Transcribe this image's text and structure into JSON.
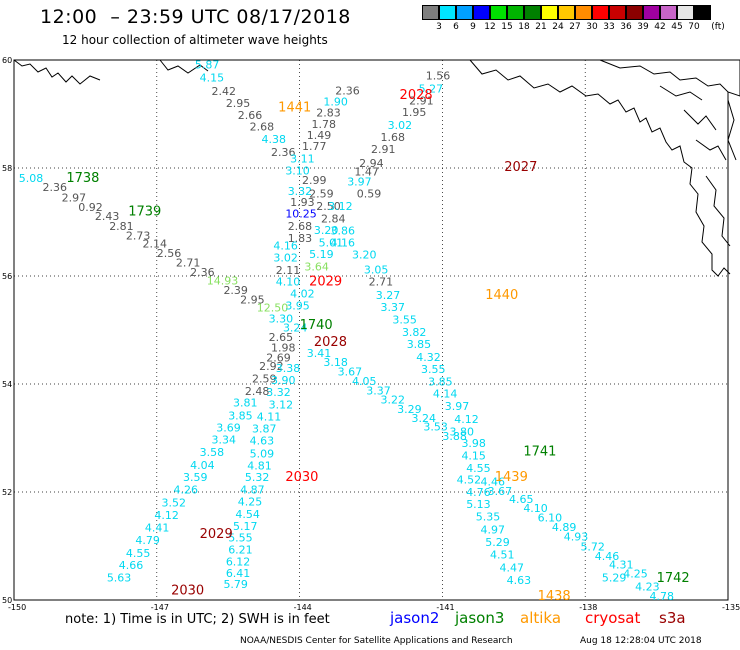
{
  "header": {
    "title": "12:00  – 23:59 UTC 08/17/2018",
    "subtitle": "12 hour collection of altimeter wave heights"
  },
  "legend": {
    "units": "(ft)",
    "bins": [
      {
        "label": "3",
        "color": "#7f7f7f"
      },
      {
        "label": "6",
        "color": "#00e5ff"
      },
      {
        "label": "9",
        "color": "#00a0ff"
      },
      {
        "label": "12",
        "color": "#0000ff"
      },
      {
        "label": "15",
        "color": "#00e000"
      },
      {
        "label": "18",
        "color": "#00b400"
      },
      {
        "label": "21",
        "color": "#008000"
      },
      {
        "label": "24",
        "color": "#ffff00"
      },
      {
        "label": "27",
        "color": "#ffc800"
      },
      {
        "label": "30",
        "color": "#ff8c00"
      },
      {
        "label": "33",
        "color": "#ff0000"
      },
      {
        "label": "36",
        "color": "#c80000"
      },
      {
        "label": "39",
        "color": "#8b0000"
      },
      {
        "label": "42",
        "color": "#a000a0"
      },
      {
        "label": "45",
        "color": "#c864c8"
      },
      {
        "label": "70",
        "color": "#e6e6e6"
      },
      {
        "label": "",
        "color": "#000000"
      }
    ]
  },
  "axes": {
    "lon_labels": [
      "-150",
      "-147",
      "-144",
      "-141",
      "-138",
      "-135"
    ],
    "lat_labels": [
      "60",
      "58",
      "56",
      "54",
      "52",
      "50"
    ]
  },
  "colors": {
    "gray": "#555555",
    "cyan": "#00d8f0",
    "blue": "#0000ff",
    "lightgreen": "#88e060",
    "green": "#008000",
    "orange": "#ff9900",
    "red": "#ff0000",
    "darkred": "#990000",
    "coast": "#000000",
    "grid": "#000000"
  },
  "passes": [
    {
      "text": "2028",
      "lon": -141.9,
      "lat": 59.28,
      "color": "red"
    },
    {
      "text": "1441",
      "lon": -144.45,
      "lat": 59.05,
      "color": "orange"
    },
    {
      "text": "2027",
      "lon": -139.7,
      "lat": 57.94,
      "color": "darkred"
    },
    {
      "text": "1738",
      "lon": -148.9,
      "lat": 57.74,
      "color": "green"
    },
    {
      "text": "1739",
      "lon": -147.6,
      "lat": 57.12,
      "color": "green"
    },
    {
      "text": "2029",
      "lon": -143.8,
      "lat": 55.82,
      "color": "red"
    },
    {
      "text": "1440",
      "lon": -140.1,
      "lat": 55.57,
      "color": "orange"
    },
    {
      "text": "1740",
      "lon": -144.0,
      "lat": 55.02,
      "color": "green"
    },
    {
      "text": "2028",
      "lon": -143.7,
      "lat": 54.7,
      "color": "darkred"
    },
    {
      "text": "1741",
      "lon": -139.3,
      "lat": 52.68,
      "color": "green"
    },
    {
      "text": "2030",
      "lon": -144.3,
      "lat": 52.2,
      "color": "red"
    },
    {
      "text": "1439",
      "lon": -139.9,
      "lat": 52.2,
      "color": "orange"
    },
    {
      "text": "2029",
      "lon": -146.1,
      "lat": 51.15,
      "color": "darkred"
    },
    {
      "text": "1742",
      "lon": -136.5,
      "lat": 50.33,
      "color": "green"
    },
    {
      "text": "2030",
      "lon": -146.7,
      "lat": 50.1,
      "color": "darkred"
    },
    {
      "text": "1438",
      "lon": -139.0,
      "lat": 50.0,
      "color": "orange"
    }
  ],
  "observations": [
    {
      "v": "5.87",
      "lon": -146.2,
      "lat": 59.84,
      "c": "cyan"
    },
    {
      "v": "4.15",
      "lon": -146.1,
      "lat": 59.6,
      "c": "cyan"
    },
    {
      "v": "2.36",
      "lon": -143.25,
      "lat": 59.36,
      "c": "gray"
    },
    {
      "v": "2.42",
      "lon": -145.85,
      "lat": 59.35,
      "c": "gray"
    },
    {
      "v": "2.95",
      "lon": -145.55,
      "lat": 59.13,
      "c": "gray"
    },
    {
      "v": "1.90",
      "lon": -143.5,
      "lat": 59.16,
      "c": "cyan"
    },
    {
      "v": "2.83",
      "lon": -143.65,
      "lat": 58.95,
      "c": "gray"
    },
    {
      "v": "2.66",
      "lon": -145.3,
      "lat": 58.91,
      "c": "gray"
    },
    {
      "v": "1.78",
      "lon": -143.75,
      "lat": 58.74,
      "c": "gray"
    },
    {
      "v": "2.68",
      "lon": -145.05,
      "lat": 58.69,
      "c": "gray"
    },
    {
      "v": "1.49",
      "lon": -143.85,
      "lat": 58.54,
      "c": "gray"
    },
    {
      "v": "4.38",
      "lon": -144.8,
      "lat": 58.46,
      "c": "cyan"
    },
    {
      "v": "1.77",
      "lon": -143.95,
      "lat": 58.33,
      "c": "gray"
    },
    {
      "v": "2.36",
      "lon": -144.6,
      "lat": 58.22,
      "c": "gray"
    },
    {
      "v": "3.11",
      "lon": -144.2,
      "lat": 58.1,
      "c": "cyan"
    },
    {
      "v": "3.10",
      "lon": -144.3,
      "lat": 57.88,
      "c": "cyan"
    },
    {
      "v": "2.99",
      "lon": -143.95,
      "lat": 57.7,
      "c": "gray"
    },
    {
      "v": "3.32",
      "lon": -144.25,
      "lat": 57.5,
      "c": "cyan"
    },
    {
      "v": "2.59",
      "lon": -143.8,
      "lat": 57.45,
      "c": "gray"
    },
    {
      "v": "1.93",
      "lon": -144.2,
      "lat": 57.3,
      "c": "gray"
    },
    {
      "v": "2.50",
      "lon": -143.65,
      "lat": 57.22,
      "c": "gray"
    },
    {
      "v": "10.25",
      "lon": -144.3,
      "lat": 57.08,
      "c": "blue"
    },
    {
      "v": "2.84",
      "lon": -143.55,
      "lat": 56.99,
      "c": "gray"
    },
    {
      "v": "2.68",
      "lon": -144.25,
      "lat": 56.85,
      "c": "gray"
    },
    {
      "v": "3.20",
      "lon": -143.7,
      "lat": 56.78,
      "c": "cyan"
    },
    {
      "v": "1.83",
      "lon": -144.25,
      "lat": 56.63,
      "c": "gray"
    },
    {
      "v": "5.01",
      "lon": -143.6,
      "lat": 56.55,
      "c": "cyan"
    },
    {
      "v": "4.16",
      "lon": -144.55,
      "lat": 56.49,
      "c": "cyan"
    },
    {
      "v": "5.19",
      "lon": -143.8,
      "lat": 56.33,
      "c": "cyan"
    },
    {
      "v": "3.02",
      "lon": -144.55,
      "lat": 56.27,
      "c": "cyan"
    },
    {
      "v": "3.64",
      "lon": -143.9,
      "lat": 56.1,
      "c": "lightgreen"
    },
    {
      "v": "2.11",
      "lon": -144.5,
      "lat": 56.04,
      "c": "gray"
    },
    {
      "v": "4.10",
      "lon": -144.5,
      "lat": 55.82,
      "c": "cyan"
    },
    {
      "v": "1.56",
      "lon": -141.35,
      "lat": 59.64,
      "c": "gray"
    },
    {
      "v": "5.27",
      "lon": -141.5,
      "lat": 59.4,
      "c": "cyan"
    },
    {
      "v": "2.91",
      "lon": -141.7,
      "lat": 59.18,
      "c": "gray"
    },
    {
      "v": "1.95",
      "lon": -141.85,
      "lat": 58.96,
      "c": "gray"
    },
    {
      "v": "3.02",
      "lon": -142.15,
      "lat": 58.72,
      "c": "cyan"
    },
    {
      "v": "1.68",
      "lon": -142.3,
      "lat": 58.5,
      "c": "gray"
    },
    {
      "v": "2.91",
      "lon": -142.5,
      "lat": 58.28,
      "c": "gray"
    },
    {
      "v": "2.94",
      "lon": -142.75,
      "lat": 58.02,
      "c": "gray"
    },
    {
      "v": "1.47",
      "lon": -142.85,
      "lat": 57.86,
      "c": "gray"
    },
    {
      "v": "3.97",
      "lon": -143.0,
      "lat": 57.68,
      "c": "cyan"
    },
    {
      "v": "0.59",
      "lon": -142.8,
      "lat": 57.45,
      "c": "gray"
    },
    {
      "v": "3.12",
      "lon": -143.4,
      "lat": 57.22,
      "c": "cyan"
    },
    {
      "v": "3.86",
      "lon": -143.35,
      "lat": 56.77,
      "c": "cyan"
    },
    {
      "v": "4.16",
      "lon": -143.35,
      "lat": 56.55,
      "c": "cyan"
    },
    {
      "v": "3.20",
      "lon": -142.9,
      "lat": 56.32,
      "c": "cyan"
    },
    {
      "v": "3.05",
      "lon": -142.65,
      "lat": 56.05,
      "c": "cyan"
    },
    {
      "v": "2.71",
      "lon": -142.55,
      "lat": 55.82,
      "c": "gray"
    },
    {
      "v": "3.27",
      "lon": -142.4,
      "lat": 55.57,
      "c": "cyan"
    },
    {
      "v": "3.37",
      "lon": -142.3,
      "lat": 55.35,
      "c": "cyan"
    },
    {
      "v": "3.55",
      "lon": -142.05,
      "lat": 55.12,
      "c": "cyan"
    },
    {
      "v": "3.82",
      "lon": -141.85,
      "lat": 54.89,
      "c": "cyan"
    },
    {
      "v": "3.85",
      "lon": -141.75,
      "lat": 54.67,
      "c": "cyan"
    },
    {
      "v": "4.32",
      "lon": -141.55,
      "lat": 54.43,
      "c": "cyan"
    },
    {
      "v": "3.55",
      "lon": -141.45,
      "lat": 54.2,
      "c": "cyan"
    },
    {
      "v": "3.85",
      "lon": -141.3,
      "lat": 53.97,
      "c": "cyan"
    },
    {
      "v": "4.14",
      "lon": -141.2,
      "lat": 53.75,
      "c": "cyan"
    },
    {
      "v": "3.97",
      "lon": -140.95,
      "lat": 53.52,
      "c": "cyan"
    },
    {
      "v": "4.12",
      "lon": -140.75,
      "lat": 53.28,
      "c": "cyan"
    },
    {
      "v": "3.80",
      "lon": -140.85,
      "lat": 53.05,
      "c": "cyan"
    },
    {
      "v": "3.98",
      "lon": -140.6,
      "lat": 52.83,
      "c": "cyan"
    },
    {
      "v": "4.15",
      "lon": -140.6,
      "lat": 52.6,
      "c": "cyan"
    },
    {
      "v": "4.55",
      "lon": -140.5,
      "lat": 52.37,
      "c": "cyan"
    },
    {
      "v": "4.52",
      "lon": -140.7,
      "lat": 52.16,
      "c": "cyan"
    },
    {
      "v": "4.76",
      "lon": -140.5,
      "lat": 51.93,
      "c": "cyan"
    },
    {
      "v": "5.13",
      "lon": -140.5,
      "lat": 51.7,
      "c": "cyan"
    },
    {
      "v": "5.35",
      "lon": -140.3,
      "lat": 51.47,
      "c": "cyan"
    },
    {
      "v": "4.97",
      "lon": -140.2,
      "lat": 51.23,
      "c": "cyan"
    },
    {
      "v": "5.29",
      "lon": -140.1,
      "lat": 51.0,
      "c": "cyan"
    },
    {
      "v": "4.51",
      "lon": -140.0,
      "lat": 50.77,
      "c": "cyan"
    },
    {
      "v": "4.47",
      "lon": -139.8,
      "lat": 50.53,
      "c": "cyan"
    },
    {
      "v": "4.63",
      "lon": -139.65,
      "lat": 50.3,
      "c": "cyan"
    },
    {
      "v": "5.08",
      "lon": -149.9,
      "lat": 57.74,
      "c": "cyan"
    },
    {
      "v": "2.36",
      "lon": -149.4,
      "lat": 57.57,
      "c": "gray"
    },
    {
      "v": "2.97",
      "lon": -149.0,
      "lat": 57.38,
      "c": "gray"
    },
    {
      "v": "0.92",
      "lon": -148.65,
      "lat": 57.2,
      "c": "gray"
    },
    {
      "v": "2.43",
      "lon": -148.3,
      "lat": 57.04,
      "c": "gray"
    },
    {
      "v": "2.81",
      "lon": -148.0,
      "lat": 56.85,
      "c": "gray"
    },
    {
      "v": "2.73",
      "lon": -147.65,
      "lat": 56.68,
      "c": "gray"
    },
    {
      "v": "2.14",
      "lon": -147.3,
      "lat": 56.53,
      "c": "gray"
    },
    {
      "v": "2.56",
      "lon": -147.0,
      "lat": 56.35,
      "c": "gray"
    },
    {
      "v": "2.71",
      "lon": -146.6,
      "lat": 56.18,
      "c": "gray"
    },
    {
      "v": "2.36",
      "lon": -146.3,
      "lat": 56.0,
      "c": "gray"
    },
    {
      "v": "14.93",
      "lon": -145.95,
      "lat": 55.84,
      "c": "lightgreen"
    },
    {
      "v": "2.39",
      "lon": -145.6,
      "lat": 55.67,
      "c": "gray"
    },
    {
      "v": "2.95",
      "lon": -145.25,
      "lat": 55.49,
      "c": "gray"
    },
    {
      "v": "12.50",
      "lon": -144.9,
      "lat": 55.34,
      "c": "lightgreen"
    },
    {
      "v": "3.30",
      "lon": -144.65,
      "lat": 55.14,
      "c": "cyan"
    },
    {
      "v": "3.24",
      "lon": -144.35,
      "lat": 54.97,
      "c": "cyan"
    },
    {
      "v": "4.02",
      "lon": -144.2,
      "lat": 55.6,
      "c": "cyan"
    },
    {
      "v": "3.95",
      "lon": -144.3,
      "lat": 55.38,
      "c": "cyan"
    },
    {
      "v": "2.65",
      "lon": -144.65,
      "lat": 54.8,
      "c": "gray"
    },
    {
      "v": "1.98",
      "lon": -144.6,
      "lat": 54.6,
      "c": "gray"
    },
    {
      "v": "3.41",
      "lon": -143.85,
      "lat": 54.5,
      "c": "cyan"
    },
    {
      "v": "3.18",
      "lon": -143.5,
      "lat": 54.33,
      "c": "cyan"
    },
    {
      "v": "3.67",
      "lon": -143.2,
      "lat": 54.16,
      "c": "cyan"
    },
    {
      "v": "4.05",
      "lon": -142.9,
      "lat": 53.98,
      "c": "cyan"
    },
    {
      "v": "3.37",
      "lon": -142.6,
      "lat": 53.81,
      "c": "cyan"
    },
    {
      "v": "3.22",
      "lon": -142.3,
      "lat": 53.64,
      "c": "cyan"
    },
    {
      "v": "3.29",
      "lon": -141.95,
      "lat": 53.46,
      "c": "cyan"
    },
    {
      "v": "3.24",
      "lon": -141.65,
      "lat": 53.3,
      "c": "cyan"
    },
    {
      "v": "3.53",
      "lon": -141.4,
      "lat": 53.14,
      "c": "cyan"
    },
    {
      "v": "3.88",
      "lon": -141.0,
      "lat": 52.96,
      "c": "cyan"
    },
    {
      "v": "4.46",
      "lon": -140.2,
      "lat": 52.12,
      "c": "cyan"
    },
    {
      "v": "3.67",
      "lon": -140.05,
      "lat": 51.94,
      "c": "cyan"
    },
    {
      "v": "4.65",
      "lon": -139.6,
      "lat": 51.8,
      "c": "cyan"
    },
    {
      "v": "4.10",
      "lon": -139.3,
      "lat": 51.63,
      "c": "cyan"
    },
    {
      "v": "6.10",
      "lon": -139.0,
      "lat": 51.45,
      "c": "cyan"
    },
    {
      "v": "4.89",
      "lon": -138.7,
      "lat": 51.28,
      "c": "cyan"
    },
    {
      "v": "4.93",
      "lon": -138.45,
      "lat": 51.1,
      "c": "cyan"
    },
    {
      "v": "5.72",
      "lon": -138.1,
      "lat": 50.92,
      "c": "cyan"
    },
    {
      "v": "4.46",
      "lon": -137.8,
      "lat": 50.74,
      "c": "cyan"
    },
    {
      "v": "4.31",
      "lon": -137.5,
      "lat": 50.58,
      "c": "cyan"
    },
    {
      "v": "4.25",
      "lon": -137.2,
      "lat": 50.42,
      "c": "cyan"
    },
    {
      "v": "5.29",
      "lon": -137.65,
      "lat": 50.34,
      "c": "cyan"
    },
    {
      "v": "4.23",
      "lon": -136.95,
      "lat": 50.18,
      "c": "cyan"
    },
    {
      "v": "4.78",
      "lon": -136.65,
      "lat": 50.0,
      "c": "cyan"
    },
    {
      "v": "2.69",
      "lon": -144.7,
      "lat": 54.42,
      "c": "gray"
    },
    {
      "v": "2.92",
      "lon": -144.85,
      "lat": 54.26,
      "c": "gray"
    },
    {
      "v": "2.59",
      "lon": -145.0,
      "lat": 54.03,
      "c": "gray"
    },
    {
      "v": "2.48",
      "lon": -145.15,
      "lat": 53.8,
      "c": "gray"
    },
    {
      "v": "3.81",
      "lon": -145.4,
      "lat": 53.58,
      "c": "cyan"
    },
    {
      "v": "3.85",
      "lon": -145.5,
      "lat": 53.34,
      "c": "cyan"
    },
    {
      "v": "3.69",
      "lon": -145.75,
      "lat": 53.12,
      "c": "cyan"
    },
    {
      "v": "3.34",
      "lon": -145.85,
      "lat": 52.9,
      "c": "cyan"
    },
    {
      "v": "3.58",
      "lon": -146.1,
      "lat": 52.67,
      "c": "cyan"
    },
    {
      "v": "4.04",
      "lon": -146.3,
      "lat": 52.43,
      "c": "cyan"
    },
    {
      "v": "3.59",
      "lon": -146.45,
      "lat": 52.2,
      "c": "cyan"
    },
    {
      "v": "4.26",
      "lon": -146.65,
      "lat": 51.97,
      "c": "cyan"
    },
    {
      "v": "3.52",
      "lon": -146.9,
      "lat": 51.73,
      "c": "cyan"
    },
    {
      "v": "4.12",
      "lon": -147.05,
      "lat": 51.5,
      "c": "cyan"
    },
    {
      "v": "4.41",
      "lon": -147.25,
      "lat": 51.27,
      "c": "cyan"
    },
    {
      "v": "4.79",
      "lon": -147.45,
      "lat": 51.04,
      "c": "cyan"
    },
    {
      "v": "4.55",
      "lon": -147.65,
      "lat": 50.8,
      "c": "cyan"
    },
    {
      "v": "4.66",
      "lon": -147.8,
      "lat": 50.57,
      "c": "cyan"
    },
    {
      "v": "5.63",
      "lon": -148.05,
      "lat": 50.34,
      "c": "cyan"
    },
    {
      "v": "3.38",
      "lon": -144.5,
      "lat": 54.22,
      "c": "cyan"
    },
    {
      "v": "3.90",
      "lon": -144.6,
      "lat": 54.0,
      "c": "cyan"
    },
    {
      "v": "3.32",
      "lon": -144.7,
      "lat": 53.78,
      "c": "cyan"
    },
    {
      "v": "3.12",
      "lon": -144.65,
      "lat": 53.55,
      "c": "cyan"
    },
    {
      "v": "4.11",
      "lon": -144.9,
      "lat": 53.32,
      "c": "cyan"
    },
    {
      "v": "3.87",
      "lon": -145.0,
      "lat": 53.1,
      "c": "cyan"
    },
    {
      "v": "4.63",
      "lon": -145.05,
      "lat": 52.88,
      "c": "cyan"
    },
    {
      "v": "5.09",
      "lon": -145.05,
      "lat": 52.64,
      "c": "cyan"
    },
    {
      "v": "4.81",
      "lon": -145.1,
      "lat": 52.42,
      "c": "cyan"
    },
    {
      "v": "5.32",
      "lon": -145.15,
      "lat": 52.2,
      "c": "cyan"
    },
    {
      "v": "4.87",
      "lon": -145.25,
      "lat": 51.97,
      "c": "cyan"
    },
    {
      "v": "4.25",
      "lon": -145.3,
      "lat": 51.75,
      "c": "cyan"
    },
    {
      "v": "4.54",
      "lon": -145.35,
      "lat": 51.52,
      "c": "cyan"
    },
    {
      "v": "5.17",
      "lon": -145.4,
      "lat": 51.3,
      "c": "cyan"
    },
    {
      "v": "5.55",
      "lon": -145.5,
      "lat": 51.08,
      "c": "cyan"
    },
    {
      "v": "6.21",
      "lon": -145.5,
      "lat": 50.86,
      "c": "cyan"
    },
    {
      "v": "6.12",
      "lon": -145.55,
      "lat": 50.64,
      "c": "cyan"
    },
    {
      "v": "6.41",
      "lon": -145.55,
      "lat": 50.43,
      "c": "cyan"
    },
    {
      "v": "5.79",
      "lon": -145.6,
      "lat": 50.22,
      "c": "cyan"
    }
  ],
  "footer": {
    "note": "note:  1) Time is in UTC;  2) SWH is in feet",
    "satellites": [
      {
        "name": "jason2",
        "color": "#0000ff"
      },
      {
        "name": "jason3",
        "color": "#008000"
      },
      {
        "name": "altika",
        "color": "#ff9900"
      },
      {
        "name": "cryosat",
        "color": "#ff0000"
      },
      {
        "name": "s3a",
        "color": "#990000"
      }
    ],
    "credit": "NOAA/NESDIS Center for Satellite Applications and Research",
    "timestamp": "Aug 18 12:28:04 UTC 2018"
  }
}
